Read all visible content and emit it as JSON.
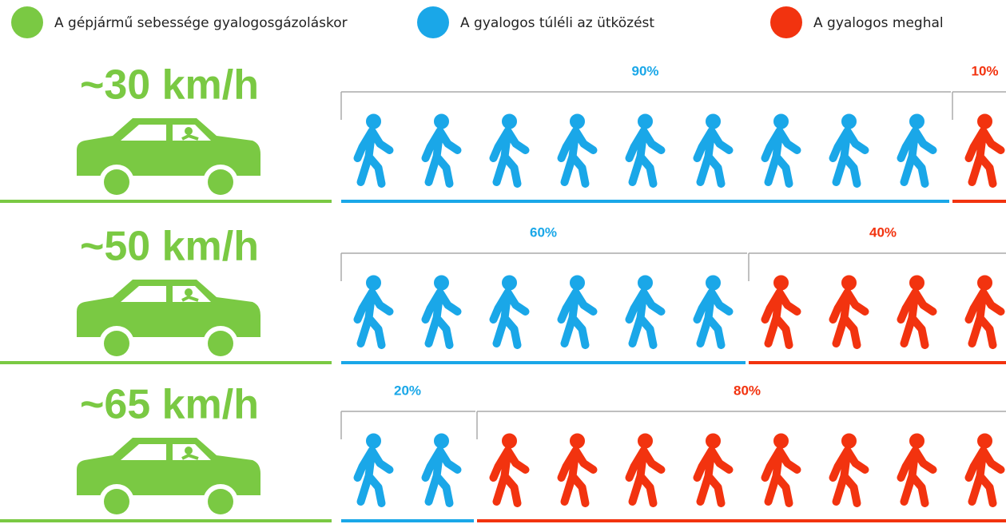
{
  "chart_data": {
    "type": "pictogram",
    "category_legend": {
      "name": "A gépjármű sebessége gyalogosgázoláskor",
      "color": "#7ac943"
    },
    "categories": [
      "~30 km/h",
      "~50 km/h",
      "~65 km/h"
    ],
    "xlim": [
      0,
      100
    ],
    "series": [
      {
        "name": "A gyalogos túléli az ütközést",
        "color": "#1aa7e8",
        "values": [
          90,
          60,
          20
        ],
        "value_labels": [
          "90%",
          "60%",
          "20%"
        ]
      },
      {
        "name": "A gyalogos meghal",
        "color": "#f2330f",
        "values": [
          10,
          40,
          80
        ],
        "value_labels": [
          "10%",
          "40%",
          "80%"
        ]
      }
    ]
  }
}
